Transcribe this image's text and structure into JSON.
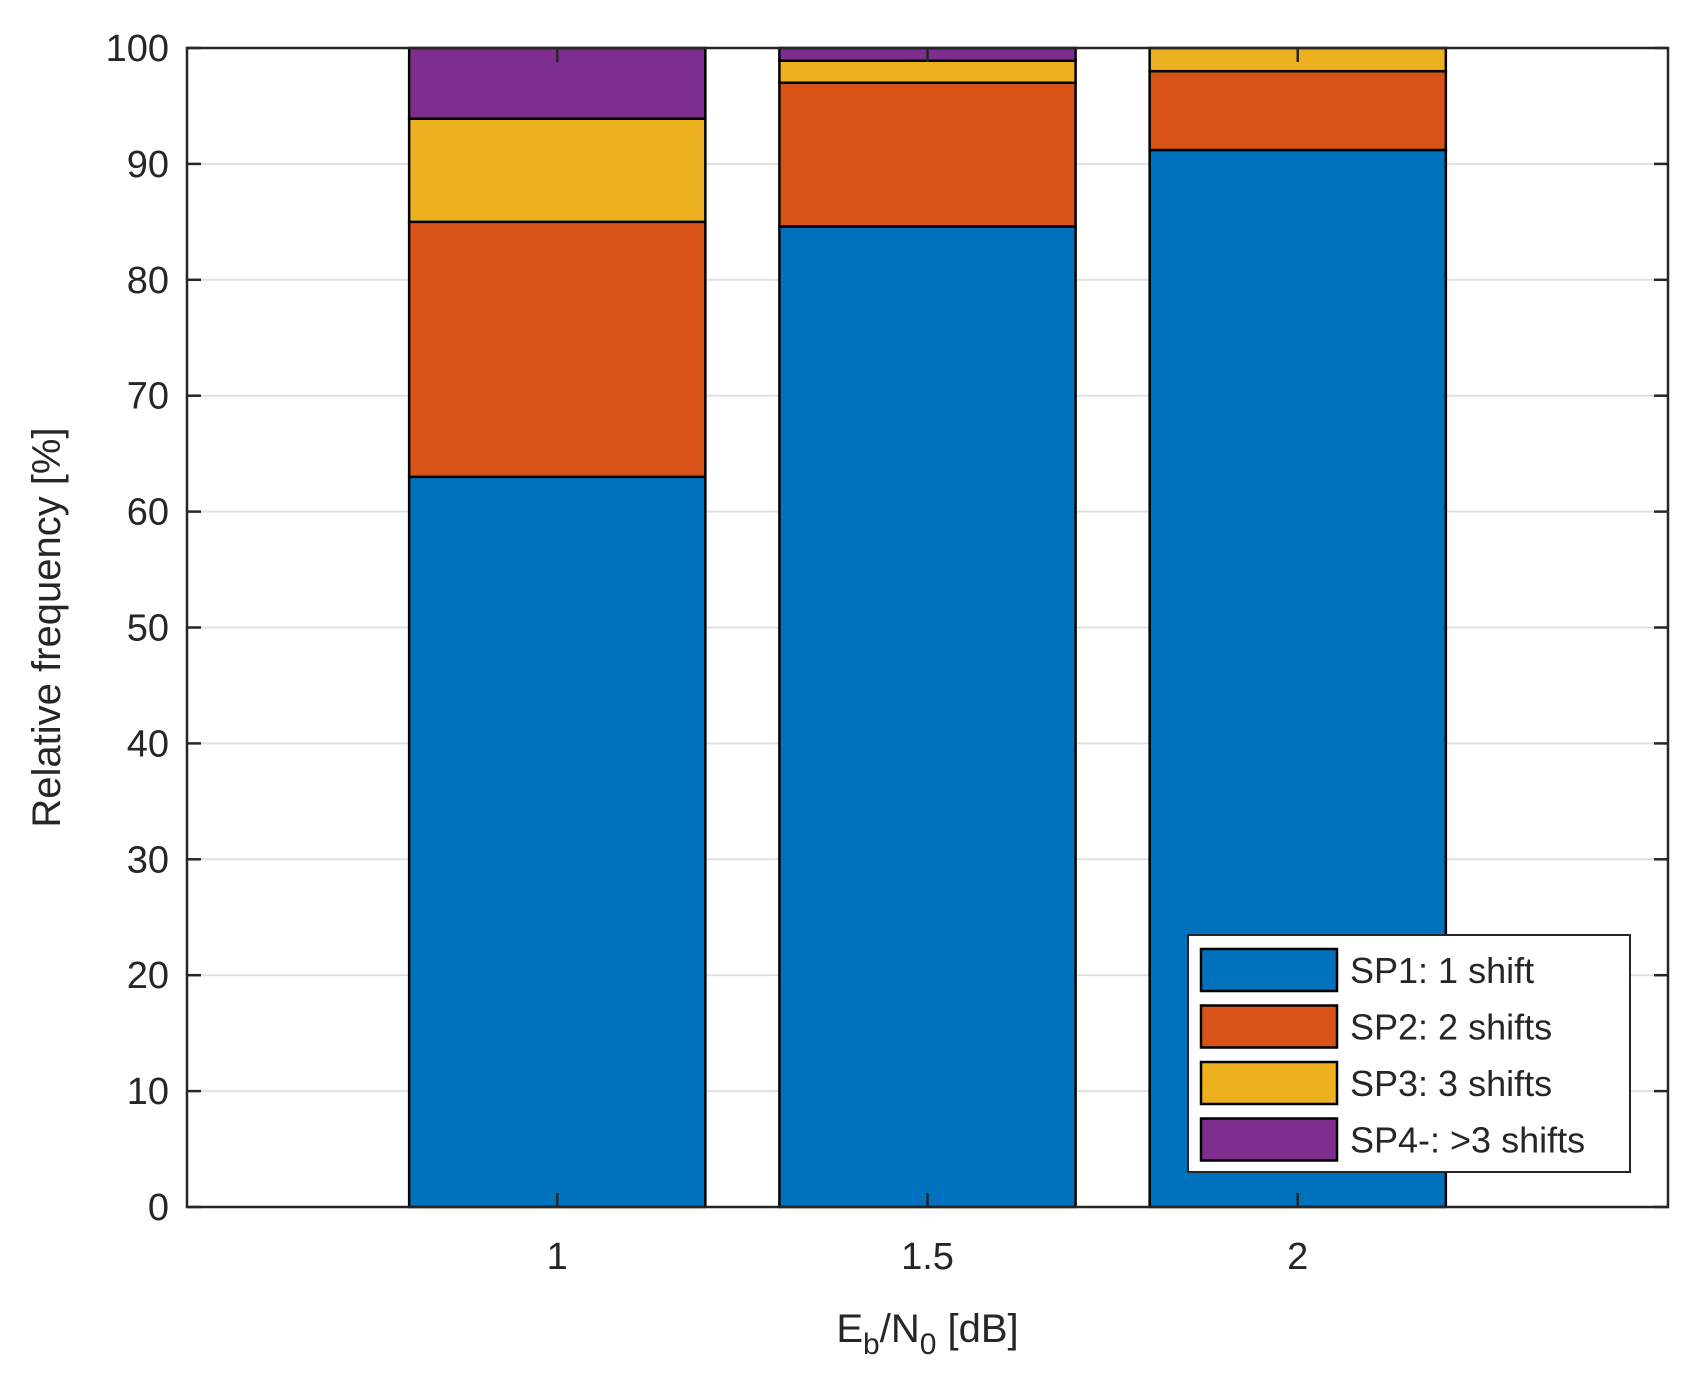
{
  "chart_data": {
    "type": "bar",
    "stacked": true,
    "title": "",
    "xlabel": {
      "main": "E",
      "sub1": "b",
      "mid": "/N",
      "sub2": "0",
      "tail": " [dB]"
    },
    "ylabel": "Relative frequency [%]",
    "categories": [
      "1",
      "1.5",
      "2"
    ],
    "x": [
      1,
      1.5,
      2
    ],
    "xlim": [
      0.5,
      2.5
    ],
    "ylim": [
      0,
      100
    ],
    "yticks": [
      0,
      10,
      20,
      30,
      40,
      50,
      60,
      70,
      80,
      90,
      100
    ],
    "yticks_label": [
      "0",
      "10",
      "20",
      "30",
      "40",
      "50",
      "60",
      "70",
      "80",
      "90",
      "100"
    ],
    "grid": true,
    "legend_position": "bottom-right",
    "series": [
      {
        "name": "SP1: 1 shift",
        "color": "#0072BD",
        "values": [
          63,
          84.6,
          91.2
        ]
      },
      {
        "name": "SP2: 2 shifts",
        "color": "#D95319",
        "values": [
          22,
          12.4,
          6.8
        ]
      },
      {
        "name": "SP3: 3 shifts",
        "color": "#EDB120",
        "values": [
          8.9,
          1.9,
          2.0
        ]
      },
      {
        "name": "SP4-: >3 shifts",
        "color": "#7E2F8E",
        "values": [
          6.1,
          1.1,
          0.0
        ]
      }
    ]
  }
}
